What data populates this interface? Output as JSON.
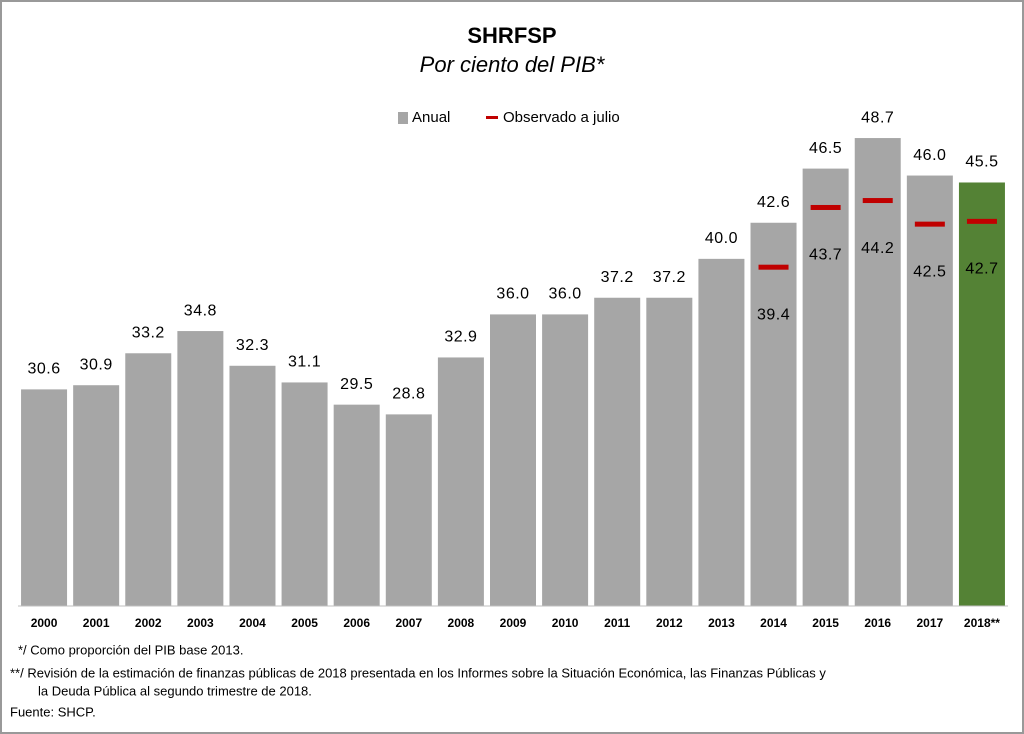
{
  "chart_data": {
    "type": "bar",
    "title": "SHRFSP",
    "subtitle": "Por ciento del PIB*",
    "categories": [
      "2000",
      "2001",
      "2002",
      "2003",
      "2004",
      "2005",
      "2006",
      "2007",
      "2008",
      "2009",
      "2010",
      "2011",
      "2012",
      "2013",
      "2014",
      "2015",
      "2016",
      "2017",
      "2018**"
    ],
    "series": [
      {
        "name": "Anual",
        "color": "#a6a6a6",
        "colors": [
          "#a6a6a6",
          "#a6a6a6",
          "#a6a6a6",
          "#a6a6a6",
          "#a6a6a6",
          "#a6a6a6",
          "#a6a6a6",
          "#a6a6a6",
          "#a6a6a6",
          "#a6a6a6",
          "#a6a6a6",
          "#a6a6a6",
          "#a6a6a6",
          "#a6a6a6",
          "#a6a6a6",
          "#a6a6a6",
          "#a6a6a6",
          "#a6a6a6",
          "#548235"
        ],
        "values": [
          30.6,
          30.9,
          33.2,
          34.8,
          32.3,
          31.1,
          29.5,
          28.8,
          32.9,
          36.0,
          36.0,
          37.2,
          37.2,
          40.0,
          42.6,
          46.5,
          48.7,
          46.0,
          45.5
        ],
        "value_labels": [
          "30.6",
          "30.9",
          "33.2",
          "34.8",
          "32.3",
          "31.1",
          "29.5",
          "28.8",
          "32.9",
          "36.0",
          "36.0",
          "37.2",
          "37.2",
          "40.0",
          "42.6",
          "46.5",
          "48.7",
          "46.0",
          "45.5"
        ]
      },
      {
        "name": "Observado a julio",
        "color": "#c00000",
        "values": [
          null,
          null,
          null,
          null,
          null,
          null,
          null,
          null,
          null,
          null,
          null,
          null,
          null,
          null,
          39.4,
          43.7,
          44.2,
          42.5,
          42.7
        ]
      }
    ],
    "ylim": [
      15,
      50
    ],
    "footnotes": [
      "*/  Como proporción del PIB base 2013.",
      "**/  Revisión de la estimación de finanzas públicas de 2018 presentada en los Informes sobre la Situación Económica, las Finanzas Públicas y",
      "la Deuda Pública al segundo trimestre de 2018.",
      "Fuente: SHCP."
    ]
  }
}
